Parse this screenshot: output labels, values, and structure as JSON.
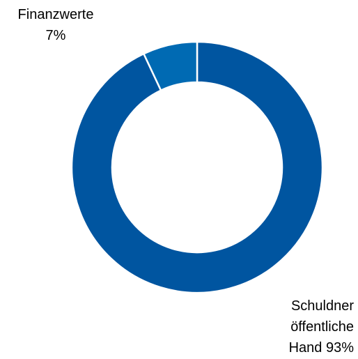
{
  "chart_data": {
    "type": "donut",
    "categories": [
      "Schuldner öffentliche Hand",
      "Finanzwerte"
    ],
    "values": [
      93,
      7
    ],
    "value_labels": [
      "93%",
      "7%"
    ],
    "colors": [
      "#0055a0",
      "#006ab3"
    ]
  }
}
